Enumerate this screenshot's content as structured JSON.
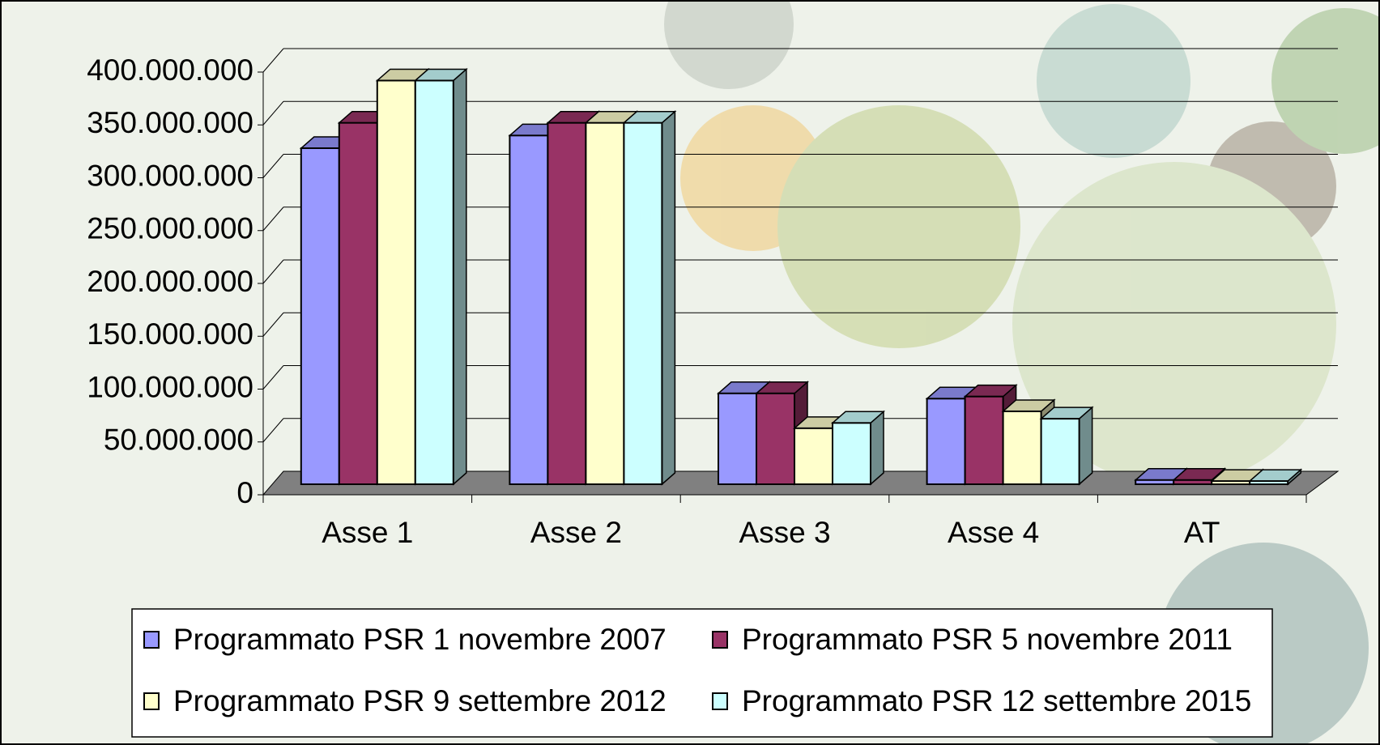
{
  "chart_data": {
    "type": "bar3d",
    "categories": [
      "Asse 1",
      "Asse 2",
      "Asse 3",
      "Asse 4",
      "AT"
    ],
    "series": [
      {
        "name": "Programmato PSR 1 novembre 2007",
        "color": "#9999ff",
        "values": [
          318000000,
          330000000,
          86000000,
          81000000,
          4000000
        ]
      },
      {
        "name": "Programmato PSR 5 novembre 2011",
        "color": "#993366",
        "values": [
          342000000,
          342000000,
          86000000,
          83000000,
          4000000
        ]
      },
      {
        "name": "Programmato PSR 9 settembre 2012",
        "color": "#ffffcc",
        "values": [
          382000000,
          342000000,
          53000000,
          69000000,
          3000000
        ]
      },
      {
        "name": "Programmato PSR 12 settembre 2015",
        "color": "#ccffff",
        "values": [
          382000000,
          342000000,
          58000000,
          62000000,
          3000000
        ]
      }
    ],
    "ylim": [
      0,
      400000000
    ],
    "yticks": [
      0,
      {
        "value": 50000000,
        "label": "50.000.000"
      },
      {
        "value": 100000000,
        "label": "100.000.000"
      },
      {
        "value": 150000000,
        "label": "150.000.000"
      },
      {
        "value": 200000000,
        "label": "200.000.000"
      },
      {
        "value": 250000000,
        "label": "250.000.000"
      },
      {
        "value": 300000000,
        "label": "300.000.000"
      },
      {
        "value": 350000000,
        "label": "350.000.000"
      },
      {
        "value": 400000000,
        "label": "400.000.000"
      }
    ],
    "grid": true,
    "legend": "bottom"
  }
}
